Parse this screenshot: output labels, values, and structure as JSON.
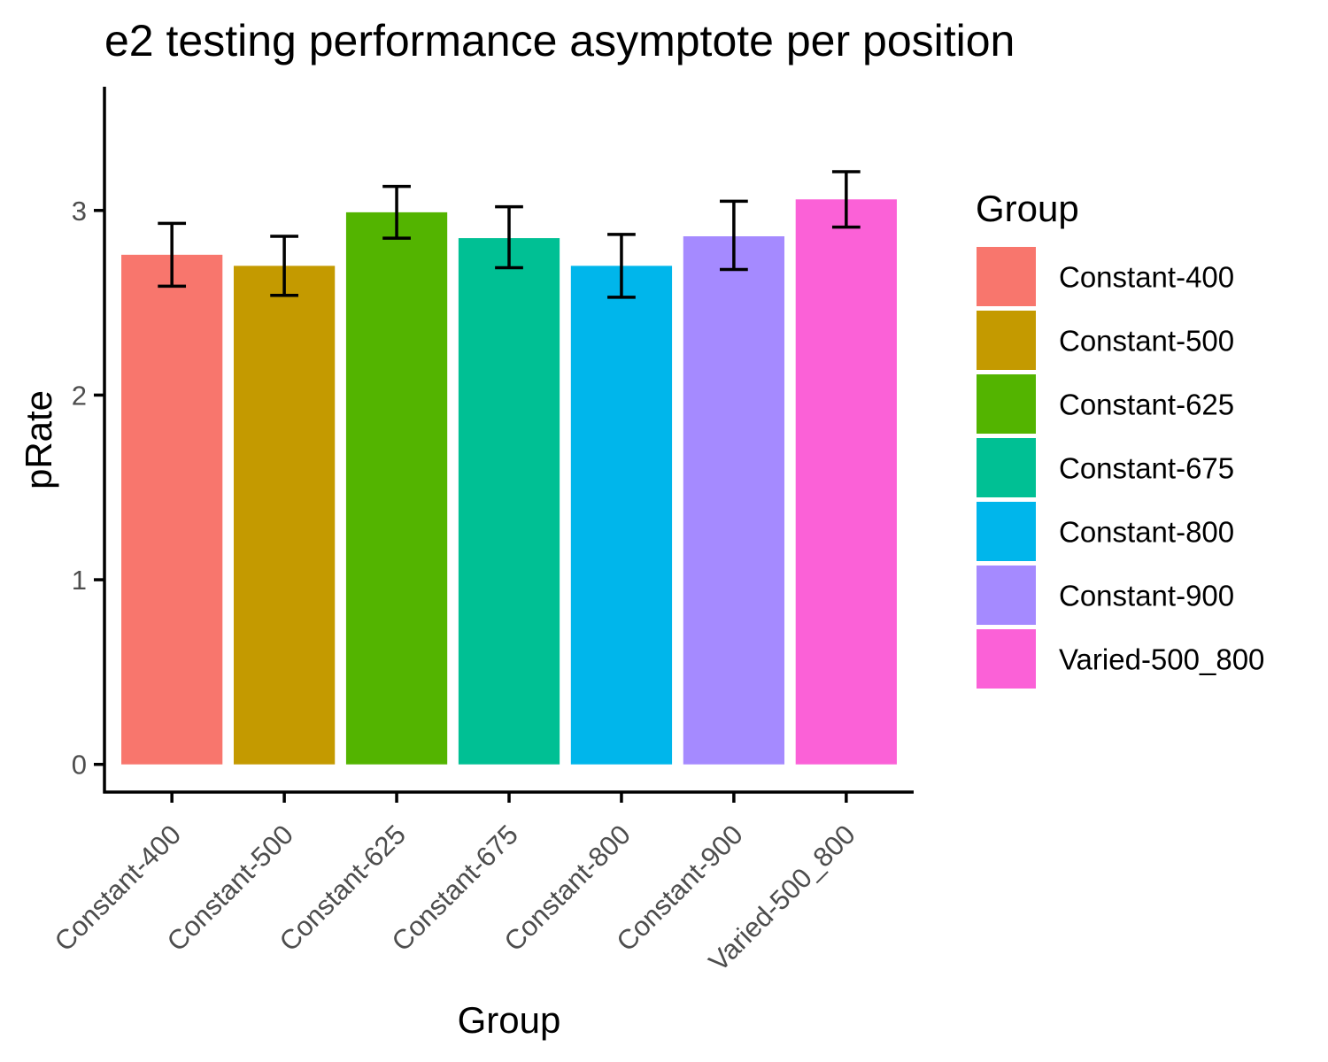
{
  "chart_data": {
    "type": "bar",
    "title": "e2 testing performance asymptote per position",
    "xlabel": "Group",
    "ylabel": "pRate",
    "ylim": [
      -0.15,
      3.67
    ],
    "yticks": [
      0,
      1,
      2,
      3
    ],
    "ytick_labels": [
      "0",
      "1",
      "2",
      "3"
    ],
    "categories": [
      "Constant-400",
      "Constant-500",
      "Constant-625",
      "Constant-675",
      "Constant-800",
      "Constant-900",
      "Varied-500_800"
    ],
    "values": [
      2.76,
      2.7,
      2.99,
      2.85,
      2.7,
      2.86,
      3.06
    ],
    "error_low": [
      2.59,
      2.54,
      2.85,
      2.69,
      2.53,
      2.68,
      2.91
    ],
    "error_high": [
      2.93,
      2.86,
      3.13,
      3.02,
      2.87,
      3.05,
      3.21
    ],
    "colors": [
      "#F8766D",
      "#C49A00",
      "#53B400",
      "#00C094",
      "#00B6EB",
      "#A58AFF",
      "#FB61D7"
    ],
    "grid": false,
    "legend": {
      "title": "Group",
      "placement": "right",
      "entries": [
        "Constant-400",
        "Constant-500",
        "Constant-625",
        "Constant-675",
        "Constant-800",
        "Constant-900",
        "Varied-500_800"
      ]
    }
  }
}
